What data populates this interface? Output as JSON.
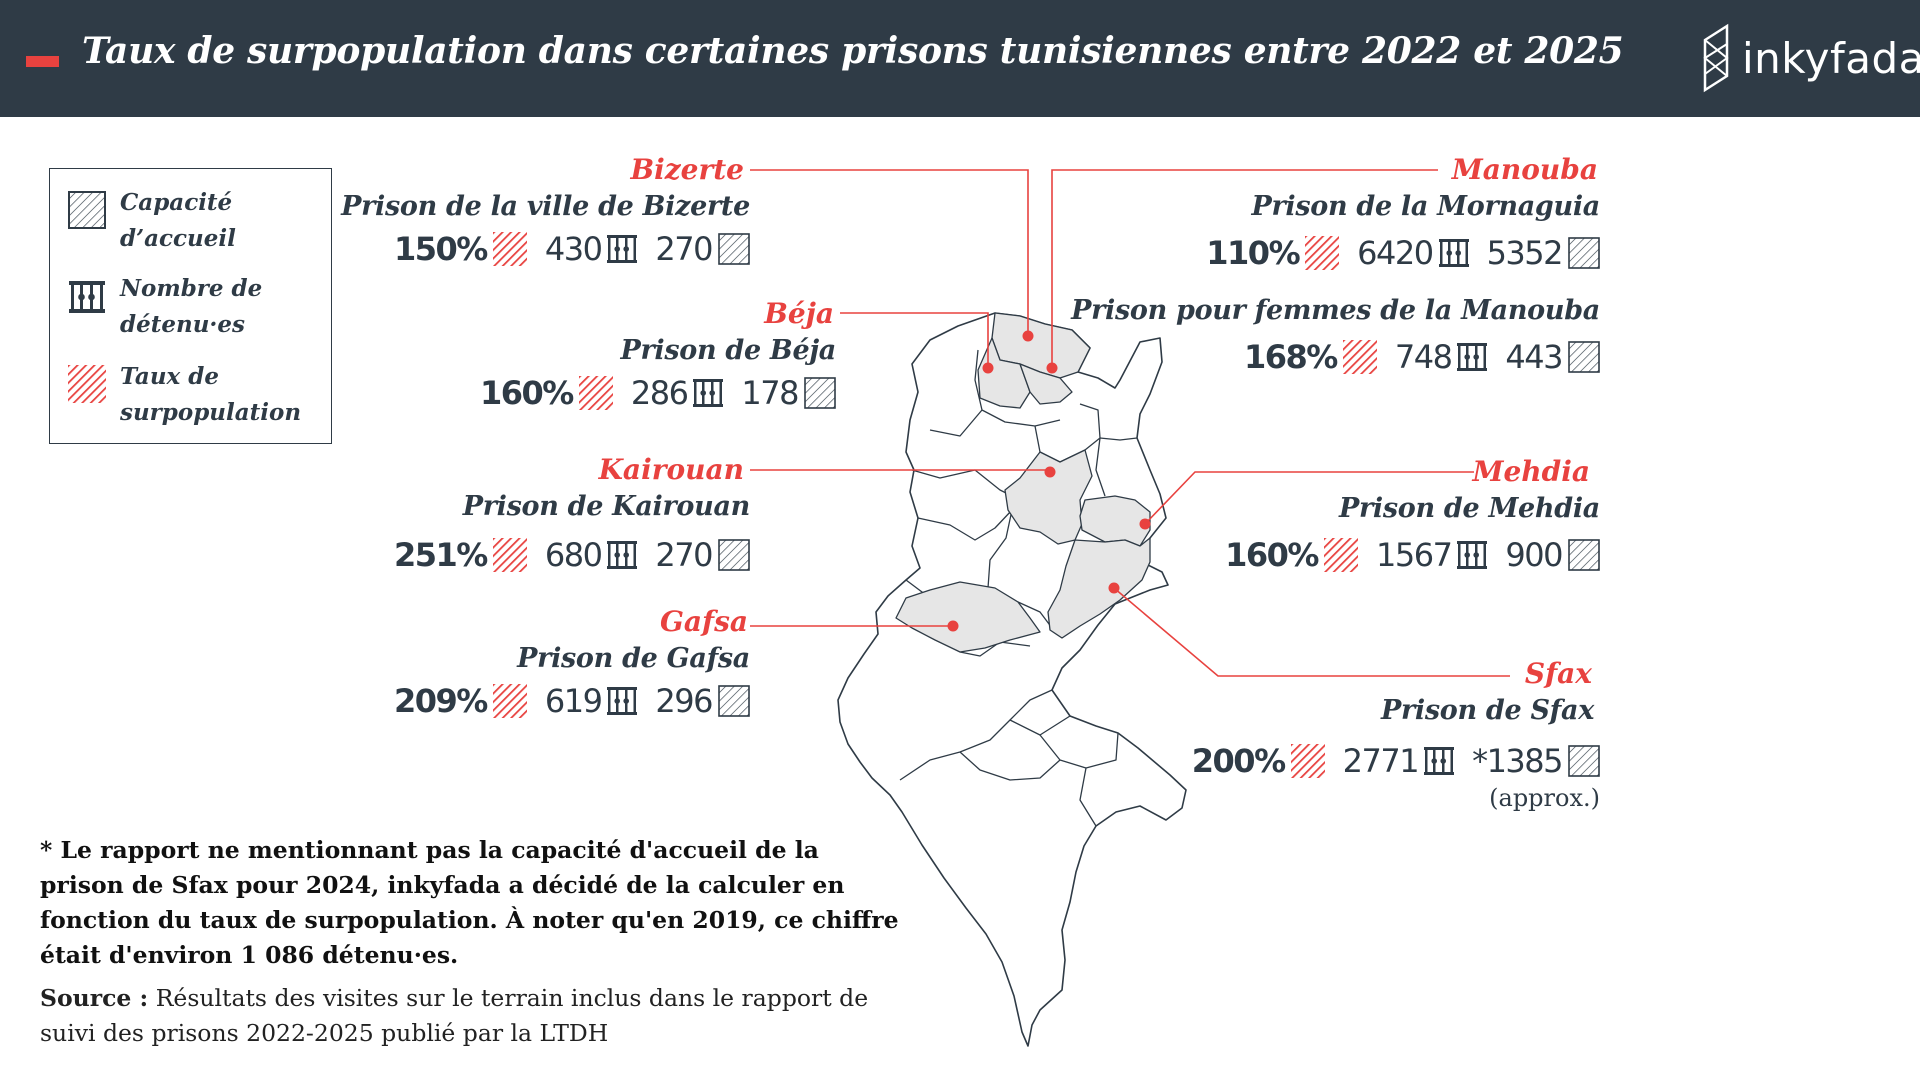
{
  "title": "Taux de surpopulation dans certaines prisons tunisiennes entre 2022 et 2025",
  "brand": "inkyfada",
  "colors": {
    "header_bg": "#2f3b46",
    "accent": "#e8423f",
    "text": "#2f3b46",
    "map_fill": "#e6e6e6",
    "map_stroke": "#2f3b46"
  },
  "legend": {
    "capacity": "Capacité d’accueil",
    "detainees": "Nombre de détenu·es",
    "overpop": "Taux de surpopulation"
  },
  "prisons": {
    "bizerte": {
      "region": "Bizerte",
      "name": "Prison de la ville de Bizerte",
      "rate": "150%",
      "detainees": "430",
      "capacity": "270"
    },
    "beja": {
      "region": "Béja",
      "name": "Prison de Béja",
      "rate": "160%",
      "detainees": "286",
      "capacity": "178"
    },
    "kairouan": {
      "region": "Kairouan",
      "name": "Prison de Kairouan",
      "rate": "251%",
      "detainees": "680",
      "capacity": "270"
    },
    "gafsa": {
      "region": "Gafsa",
      "name": "Prison de Gafsa",
      "rate": "209%",
      "detainees": "619",
      "capacity": "296"
    },
    "mornaguia": {
      "region": "Manouba",
      "name": "Prison de la Mornaguia",
      "rate": "110%",
      "detainees": "6420",
      "capacity": "5352"
    },
    "manouba_f": {
      "name": "Prison pour femmes de la Manouba",
      "rate": "168%",
      "detainees": "748",
      "capacity": "443"
    },
    "mehdia": {
      "region": "Mehdia",
      "name": "Prison de Mehdia",
      "rate": "160%",
      "detainees": "1567",
      "capacity": "900"
    },
    "sfax": {
      "region": "Sfax",
      "name": "Prison de Sfax",
      "rate": "200%",
      "detainees": "2771",
      "capacity": "*1385",
      "note": "(approx.)"
    }
  },
  "footnote": "* Le rapport ne mentionnant pas la capacité d'accueil de la prison de Sfax pour 2024, inkyfada a décidé de la calculer en fonction du taux de surpopulation. À noter qu'en 2019, ce chiffre était d'environ 1 086 détenu·es.",
  "source": {
    "label": "Source :",
    "text": "Résultats des visites sur le terrain inclus dans le rapport de suivi des prisons 2022-2025 publié par la LTDH"
  },
  "icons": {
    "capacity": "hatched-gray-square-icon",
    "detainees": "prison-bars-icon",
    "overpop": "hatched-red-square-icon"
  }
}
